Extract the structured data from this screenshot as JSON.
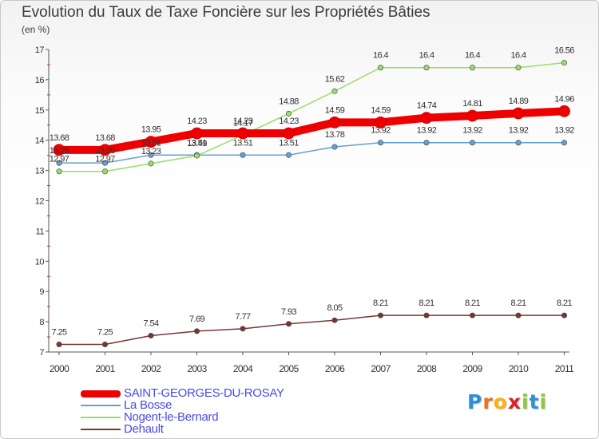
{
  "title": "Evolution du Taux de Taxe Foncière sur les Propriétés Bâties",
  "subtitle": "(en %)",
  "logo": {
    "letters": [
      "P",
      "r",
      "o",
      "x",
      "i",
      "t",
      "i"
    ],
    "colors": [
      "#2e8fd6",
      "#e8731c",
      "#f5b51a",
      "#d8232a",
      "#8fc73e",
      "#2e8fd6",
      "#8fc73e"
    ]
  },
  "chart_data": {
    "type": "line",
    "x": [
      "2000",
      "2001",
      "2002",
      "2003",
      "2004",
      "2005",
      "2006",
      "2007",
      "2008",
      "2009",
      "2010",
      "2011"
    ],
    "ylim": [
      7,
      17
    ],
    "yticks": [
      "7",
      "8",
      "9",
      "10",
      "11",
      "12",
      "13",
      "14",
      "15",
      "16",
      "17"
    ],
    "grid": false,
    "legend_position": "bottom-left",
    "series": [
      {
        "name": "SAINT-GEORGES-DU-ROSAY",
        "color": "#ee0000",
        "values": [
          13.68,
          13.68,
          13.95,
          14.23,
          14.23,
          14.23,
          14.59,
          14.59,
          14.74,
          14.81,
          14.89,
          14.96
        ],
        "labels": [
          "13.68",
          "13.68",
          "13.95",
          "14.23",
          "14.23",
          "14.23",
          "14.59",
          "14.59",
          "14.74",
          "14.81",
          "14.89",
          "14.96"
        ]
      },
      {
        "name": "La Bosse",
        "color": "#6a9ed1",
        "values": [
          13.25,
          13.25,
          13.51,
          13.51,
          13.51,
          13.51,
          13.78,
          13.92,
          13.92,
          13.92,
          13.92,
          13.92
        ],
        "labels": [
          "13.25",
          "13.25",
          "13.51",
          "13.51",
          "13.51",
          "13.51",
          "13.78",
          "13.92",
          "13.92",
          "13.92",
          "13.92",
          "13.92"
        ]
      },
      {
        "name": "Nogent-le-Bernard",
        "color": "#98dd6a",
        "values": [
          12.97,
          12.97,
          13.23,
          13.49,
          14.17,
          14.88,
          15.62,
          16.4,
          16.4,
          16.4,
          16.4,
          16.56
        ],
        "labels": [
          "12.97",
          "12.97",
          "13.23",
          "13.49",
          "14.17",
          "14.88",
          "15.62",
          "16.4",
          "16.4",
          "16.4",
          "16.4",
          "16.56"
        ]
      },
      {
        "name": "Dehault",
        "color": "#7a3535",
        "values": [
          7.25,
          7.25,
          7.54,
          7.69,
          7.77,
          7.93,
          8.05,
          8.21,
          8.21,
          8.21,
          8.21,
          8.21
        ],
        "labels": [
          "7.25",
          "7.25",
          "7.54",
          "7.69",
          "7.77",
          "7.93",
          "8.05",
          "8.21",
          "8.21",
          "8.21",
          "8.21",
          "8.21"
        ]
      }
    ]
  }
}
